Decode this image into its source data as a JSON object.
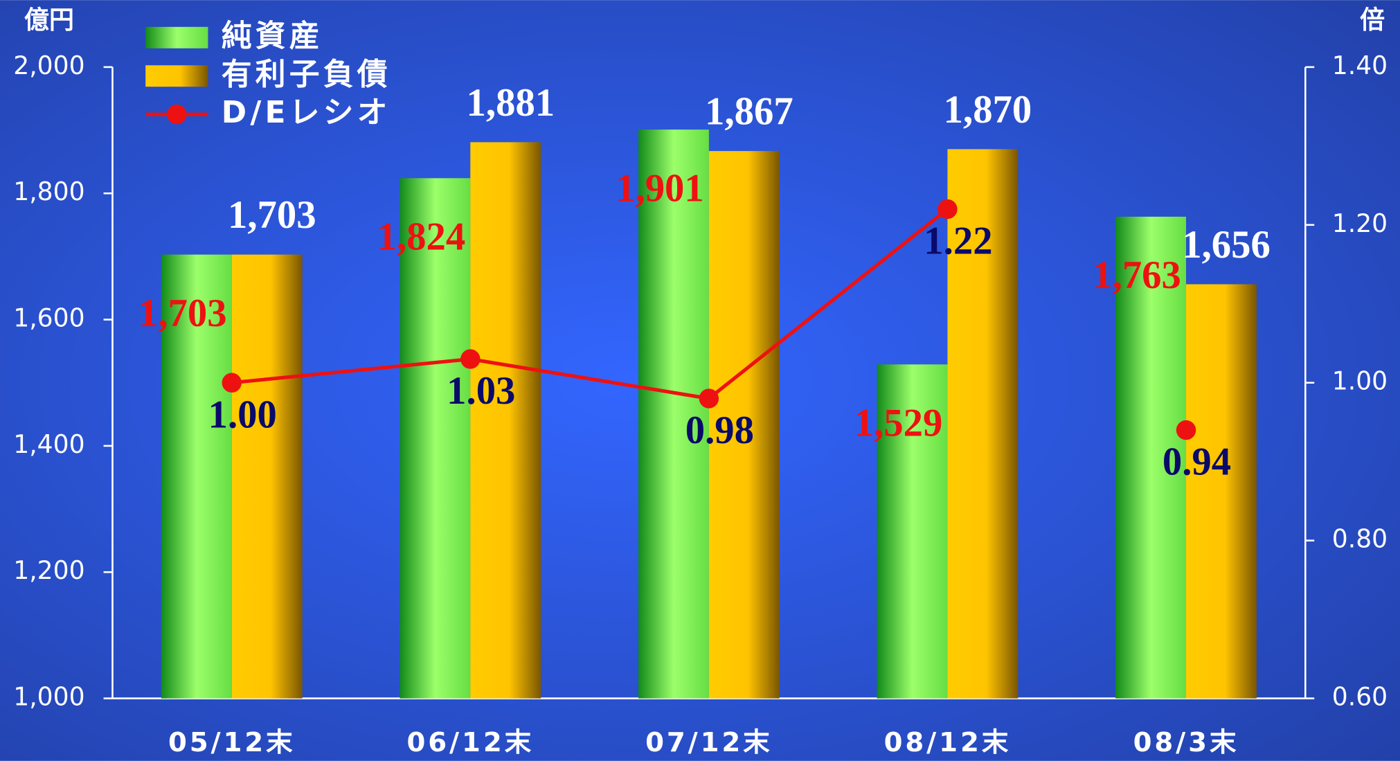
{
  "chart_data": {
    "type": "bar",
    "y_unit": "億円",
    "y2_unit": "倍",
    "categories": [
      "05/12末",
      "06/12末",
      "07/12末",
      "08/12末",
      "08/3末"
    ],
    "series": [
      {
        "name": "純資産",
        "color": "#66dd44",
        "values": [
          1703,
          1824,
          1901,
          1529,
          1763
        ],
        "value_labels": [
          "1,703",
          "1,824",
          "1,901",
          "1,529",
          "1,763"
        ]
      },
      {
        "name": "有利子負債",
        "color": "#ffcc00",
        "values": [
          1703,
          1881,
          1867,
          1870,
          1656
        ],
        "value_labels": [
          "1,703",
          "1,881",
          "1,867",
          "1,870",
          "1,656"
        ]
      },
      {
        "name": "D/Eレシオ",
        "color": "#ee1111",
        "axis": "y2",
        "type": "line",
        "values": [
          1.0,
          1.03,
          0.98,
          1.22,
          0.94
        ],
        "value_labels": [
          "1.00",
          "1.03",
          "0.98",
          "1.22",
          "0.94"
        ]
      }
    ],
    "ylim": [
      1000,
      2000
    ],
    "yticks": [
      {
        "value": 1000,
        "label": "1,000"
      },
      {
        "value": 1200,
        "label": "1,200"
      },
      {
        "value": 1400,
        "label": "1,400"
      },
      {
        "value": 1600,
        "label": "1,600"
      },
      {
        "value": 1800,
        "label": "1,800"
      },
      {
        "value": 2000,
        "label": "2,000"
      }
    ],
    "y2lim": [
      0.6,
      1.4
    ],
    "y2ticks": [
      {
        "value": 0.6,
        "label": "0.60"
      },
      {
        "value": 0.8,
        "label": "0.80"
      },
      {
        "value": 1.0,
        "label": "1.00"
      },
      {
        "value": 1.2,
        "label": "1.20"
      },
      {
        "value": 1.4,
        "label": "1.40"
      }
    ],
    "legend": "upper left"
  }
}
